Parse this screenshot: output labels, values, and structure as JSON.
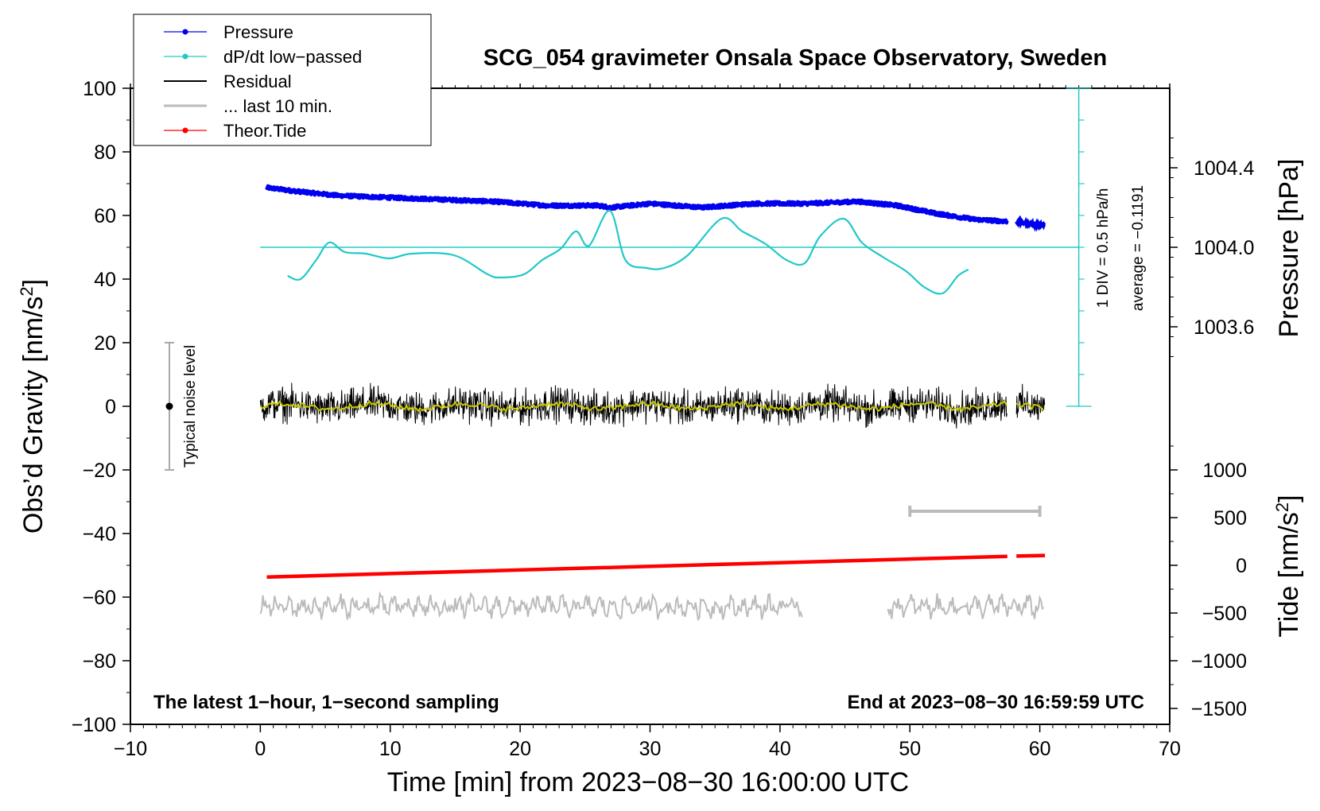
{
  "chart_data": {
    "type": "line",
    "title": "SCG_054 gravimeter Onsala Space Observatory, Sweden",
    "xlabel": "Time [min] from 2023−08−30 16:00:00 UTC",
    "ylabel": "Obs’d Gravity [nm/s",
    "ylabel_sup": "2",
    "ylabel_close": "]",
    "y2label": "Pressure [hPa]",
    "y3label": "Tide [nm/s",
    "y3label_sup": "2",
    "y3label_close": "]",
    "xlim": [
      -10,
      70
    ],
    "ylim": [
      -100,
      100
    ],
    "x_ticks": [
      -10,
      0,
      10,
      20,
      30,
      40,
      50,
      60,
      70
    ],
    "x_tick_labels": [
      "−10",
      "0",
      "10",
      "20",
      "30",
      "40",
      "50",
      "60",
      "70"
    ],
    "y_ticks": [
      -100,
      -80,
      -60,
      -40,
      -20,
      0,
      20,
      40,
      60,
      80,
      100
    ],
    "y_tick_labels": [
      "−100",
      "−80",
      "−60",
      "−40",
      "−20",
      "0",
      "20",
      "40",
      "60",
      "80",
      "100"
    ],
    "pressure_axis": {
      "ticks": [
        1003.6,
        1004.0,
        1004.4
      ],
      "tick_labels": [
        "1003.6",
        "1004.0",
        "1004.4"
      ],
      "mapping": "1004.0 hPa at gravity 50; 0.4 hPa per 25 gravity units"
    },
    "tide_axis": {
      "ticks": [
        -1500,
        -1000,
        -500,
        0,
        500,
        1000
      ],
      "tick_labels": [
        "−1500",
        "−1000",
        "−500",
        "0",
        "500",
        "1000"
      ],
      "mapping": "0 nm/s2 at gravity -50; 100 nm/s2 per 3 gravity units"
    },
    "legend": [
      {
        "label": "Pressure",
        "color": "#0000ee",
        "marker": true
      },
      {
        "label": "dP/dt low−passed",
        "color": "#22c8c8",
        "marker": true
      },
      {
        "label": "Residual",
        "color": "#000000",
        "marker": false
      },
      {
        "label": "... last 10 min.",
        "color": "#bbbbbb",
        "marker": false
      },
      {
        "label": "Theor.Tide",
        "color": "#ff0000",
        "marker": true
      }
    ],
    "series": [
      {
        "name": "Pressure",
        "color": "#0000ee",
        "unit": "hPa",
        "x": [
          0.5,
          3,
          6,
          10,
          14,
          18,
          22,
          26,
          27,
          30,
          34,
          38,
          42,
          46,
          49,
          52,
          55,
          57.5
        ],
        "values": [
          1004.3,
          1004.28,
          1004.26,
          1004.25,
          1004.24,
          1004.23,
          1004.21,
          1004.21,
          1004.2,
          1004.22,
          1004.2,
          1004.22,
          1004.22,
          1004.23,
          1004.21,
          1004.17,
          1004.14,
          1004.13
        ],
        "segment2": {
          "x": [
            58.2,
            59,
            60.4
          ],
          "values": [
            1004.13,
            1004.12,
            1004.11
          ]
        }
      },
      {
        "name": "dP/dt low-passed",
        "color": "#22c8c8",
        "unit": "gravity-axis units",
        "x": [
          2.1,
          3.1,
          4.3,
          5.3,
          6.5,
          8.1,
          9.9,
          11.7,
          14.9,
          17.5,
          18.5,
          20.3,
          21.7,
          23.1,
          24.3,
          25.3,
          26.9,
          28.1,
          29.7,
          31.1,
          32.9,
          35.5,
          37.1,
          38.9,
          40.5,
          41.9,
          43.1,
          44.9,
          46.3,
          47.9,
          49.7,
          51.1,
          52.5,
          53.7,
          54.5
        ],
        "values": [
          41,
          40,
          46,
          51.5,
          48.5,
          48,
          46.5,
          48,
          47.5,
          41.5,
          40.5,
          41.5,
          46,
          49.5,
          55,
          50.5,
          61.5,
          46,
          43.5,
          43.5,
          47.5,
          59,
          55,
          51,
          46,
          45,
          53.5,
          59,
          51.5,
          47,
          42.5,
          37.5,
          35.5,
          41,
          43
        ]
      },
      {
        "name": "Residual",
        "color": "#000000",
        "x_range": [
          0,
          60.4
        ],
        "gap": [
          57.5,
          58.2
        ],
        "mean": 0,
        "amplitude": 4
      },
      {
        "name": "... last 10 min.",
        "color": "#bbbbbb",
        "segments": [
          [
            0,
            41.8
          ],
          [
            48.3,
            60.4
          ]
        ],
        "baseline": -63,
        "amplitude": 3
      },
      {
        "name": "Theor.Tide",
        "color": "#ff0000",
        "unit": "nm/s2",
        "x": [
          0.5,
          57.5
        ],
        "values": [
          -123,
          94
        ],
        "segment2": {
          "x": [
            58.2,
            60.4
          ],
          "values": [
            97,
            103
          ]
        }
      }
    ],
    "reference_line": {
      "y": 50,
      "color": "#22c8c8",
      "x_range": [
        0,
        63
      ]
    },
    "scale_bar": {
      "x": 63,
      "y_range": [
        0,
        100
      ],
      "divisions": 10,
      "label": "1 DIV = 0.5 hPa/h",
      "average_label": "average = −0.1191"
    },
    "noise_bar": {
      "x": -7,
      "y_range": [
        -20,
        20
      ],
      "label": "Typical noise level"
    },
    "time_bar": {
      "x_range": [
        50,
        60
      ],
      "y": -33
    },
    "annotations": {
      "bottom_left": "The latest 1−hour, 1−second sampling",
      "bottom_right": "End at 2023−08−30 16:59:59 UTC"
    }
  }
}
